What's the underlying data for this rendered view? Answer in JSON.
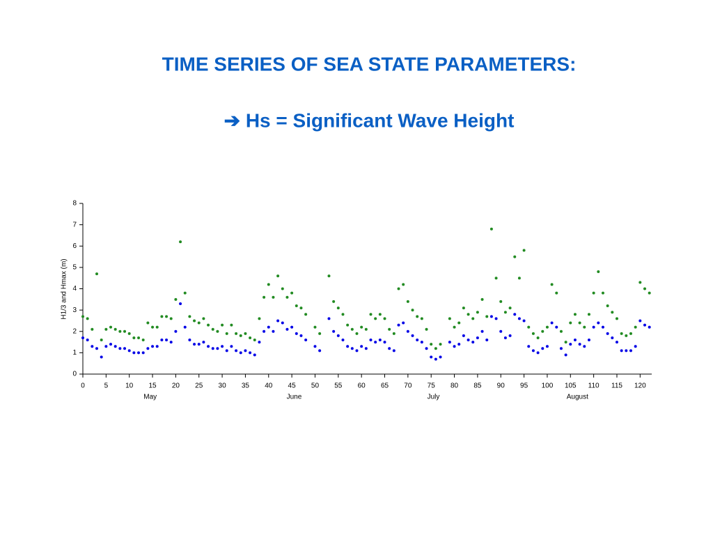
{
  "chart_data": {
    "type": "scatter",
    "title": "TIME SERIES OF SEA STATE PARAMETERS:",
    "subtitle": "➔  Hs = Significant Wave Height",
    "y_label": "H1/3 and Hmax (m)",
    "xlim": [
      0,
      122.5
    ],
    "ylim": [
      0,
      8
    ],
    "xticks": [
      0,
      5,
      10,
      15,
      20,
      25,
      30,
      35,
      40,
      45,
      50,
      55,
      60,
      65,
      70,
      75,
      80,
      85,
      90,
      95,
      100,
      105,
      110,
      115,
      120
    ],
    "yticks": [
      0,
      1,
      2,
      3,
      4,
      5,
      6,
      7,
      8
    ],
    "month_labels": [
      {
        "x": 14.5,
        "label": "May"
      },
      {
        "x": 45.5,
        "label": "June"
      },
      {
        "x": 75.5,
        "label": "July"
      },
      {
        "x": 106.5,
        "label": "August"
      }
    ],
    "x": [
      0,
      1,
      2,
      3,
      4,
      5,
      6,
      7,
      8,
      9,
      10,
      11,
      12,
      13,
      14,
      15,
      16,
      17,
      18,
      19,
      20,
      21,
      22,
      23,
      24,
      25,
      26,
      27,
      28,
      29,
      30,
      31,
      32,
      33,
      34,
      35,
      36,
      37,
      38,
      39,
      40,
      41,
      42,
      43,
      44,
      45,
      46,
      47,
      48,
      49,
      50,
      51,
      52,
      53,
      54,
      55,
      56,
      57,
      58,
      59,
      60,
      61,
      62,
      63,
      64,
      65,
      66,
      67,
      68,
      69,
      70,
      71,
      72,
      73,
      74,
      75,
      76,
      77,
      78,
      79,
      80,
      81,
      82,
      83,
      84,
      85,
      86,
      87,
      88,
      89,
      90,
      91,
      92,
      93,
      94,
      95,
      96,
      97,
      98,
      99,
      100,
      101,
      102,
      103,
      104,
      105,
      106,
      107,
      108,
      109,
      110,
      111,
      112,
      113,
      114,
      115,
      116,
      117,
      118,
      119,
      120,
      121,
      122
    ],
    "series": [
      {
        "color": "#0000e6",
        "values": [
          1.7,
          1.6,
          1.3,
          1.2,
          0.8,
          1.3,
          1.4,
          1.3,
          1.2,
          1.2,
          1.1,
          1.0,
          1.0,
          1.0,
          1.2,
          1.3,
          1.3,
          1.6,
          1.6,
          1.5,
          2.0,
          3.3,
          2.2,
          1.6,
          1.4,
          1.4,
          1.5,
          1.3,
          1.2,
          1.2,
          1.3,
          1.1,
          1.3,
          1.1,
          1.0,
          1.1,
          1.0,
          0.9,
          1.5,
          2.0,
          2.2,
          2.0,
          2.5,
          2.4,
          2.1,
          2.2,
          1.9,
          1.8,
          1.6,
          null,
          1.3,
          1.1,
          null,
          2.6,
          2.0,
          1.8,
          1.6,
          1.3,
          1.2,
          1.1,
          1.3,
          1.2,
          1.6,
          1.5,
          1.6,
          1.5,
          1.2,
          1.1,
          2.3,
          2.4,
          2.0,
          1.8,
          1.6,
          1.5,
          1.2,
          0.8,
          0.7,
          0.8,
          null,
          1.5,
          1.3,
          1.4,
          1.8,
          1.6,
          1.5,
          1.7,
          2.0,
          1.6,
          2.7,
          2.6,
          2.0,
          1.7,
          1.8,
          2.8,
          2.6,
          2.5,
          1.3,
          1.1,
          1.0,
          1.2,
          1.3,
          2.4,
          2.2,
          1.2,
          0.9,
          1.4,
          1.6,
          1.4,
          1.3,
          1.6,
          2.2,
          2.4,
          2.2,
          1.9,
          1.7,
          1.5,
          1.1,
          1.1,
          1.1,
          1.3,
          2.5,
          2.3,
          2.2
        ]
      },
      {
        "color": "#228b22",
        "values": [
          2.7,
          2.6,
          2.1,
          4.7,
          1.6,
          2.1,
          2.2,
          2.1,
          2.0,
          2.0,
          1.9,
          1.7,
          1.7,
          1.6,
          2.4,
          2.2,
          2.2,
          2.7,
          2.7,
          2.6,
          3.5,
          6.2,
          3.8,
          2.7,
          2.5,
          2.4,
          2.6,
          2.3,
          2.1,
          2.0,
          2.3,
          1.9,
          2.3,
          1.9,
          1.8,
          1.9,
          1.7,
          1.6,
          2.6,
          3.6,
          4.2,
          3.6,
          4.6,
          4.0,
          3.6,
          3.8,
          3.2,
          3.1,
          2.8,
          null,
          2.2,
          1.9,
          null,
          4.6,
          3.4,
          3.1,
          2.8,
          2.3,
          2.1,
          1.9,
          2.2,
          2.1,
          2.8,
          2.6,
          2.8,
          2.6,
          2.1,
          1.9,
          4.0,
          4.2,
          3.4,
          3.0,
          2.7,
          2.6,
          2.1,
          1.4,
          1.2,
          1.4,
          null,
          2.6,
          2.2,
          2.4,
          3.1,
          2.8,
          2.6,
          2.9,
          3.5,
          2.7,
          6.8,
          4.5,
          3.4,
          2.9,
          3.1,
          5.5,
          4.5,
          5.8,
          2.2,
          1.9,
          1.7,
          2.0,
          2.2,
          4.2,
          3.8,
          2.0,
          1.5,
          2.4,
          2.8,
          2.4,
          2.2,
          2.8,
          3.8,
          4.8,
          3.8,
          3.2,
          2.9,
          2.6,
          1.9,
          1.8,
          1.9,
          2.2,
          4.3,
          4.0,
          3.8
        ]
      }
    ]
  }
}
